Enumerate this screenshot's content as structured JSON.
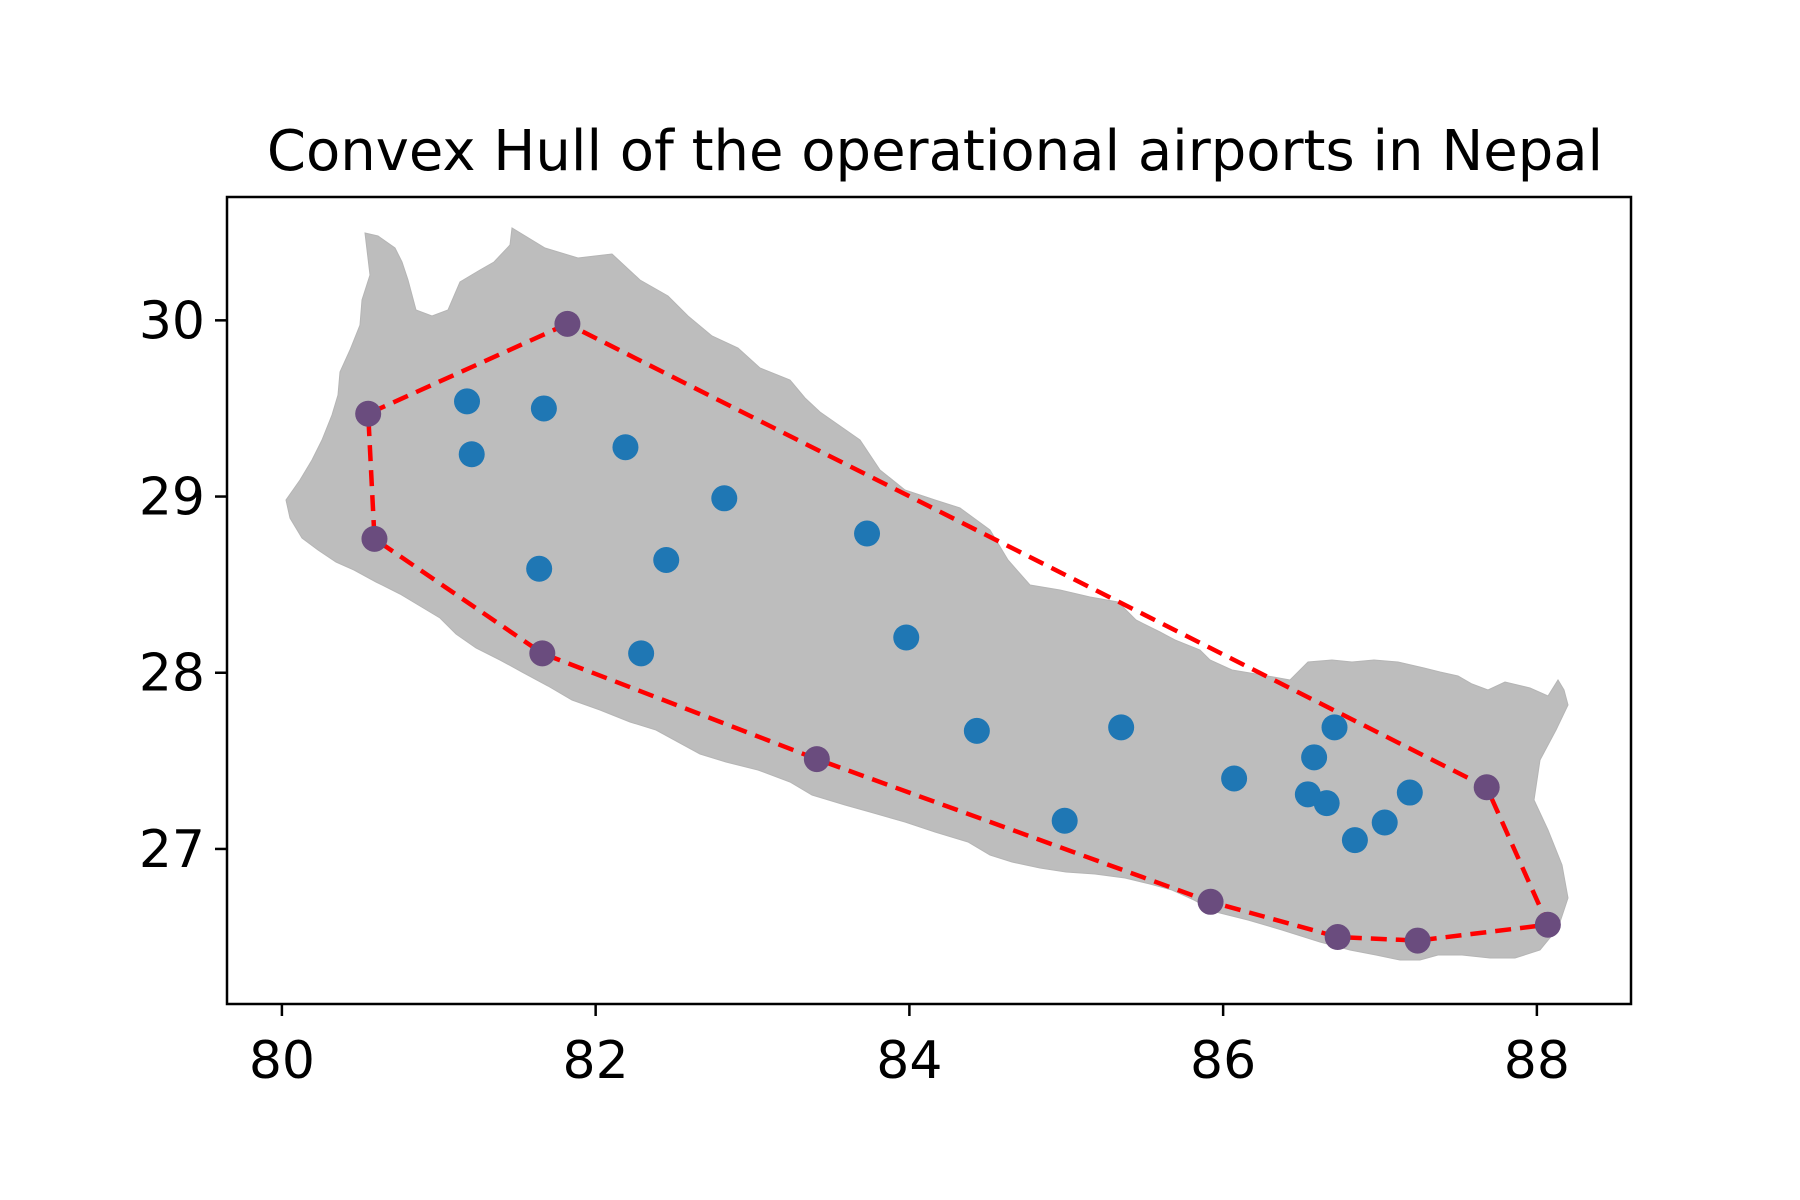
{
  "chart_data": {
    "type": "scatter",
    "title": "Convex Hull of the operational airports in Nepal",
    "xlabel": "",
    "ylabel": "",
    "xlim": [
      79.65,
      88.6
    ],
    "ylim": [
      26.12,
      30.7
    ],
    "xticks": [
      "80",
      "82",
      "84",
      "86",
      "88"
    ],
    "yticks": [
      "27",
      "28",
      "29",
      "30"
    ],
    "grid": false,
    "colors": {
      "map_fill": "#bdbdbd",
      "point": "#1f77b4",
      "hull_vertex": "#6a4c7e",
      "hull_line": "#ff0000"
    },
    "airports": [
      {
        "lon": 81.18,
        "lat": 29.54
      },
      {
        "lon": 81.67,
        "lat": 29.5
      },
      {
        "lon": 81.21,
        "lat": 29.24
      },
      {
        "lon": 82.19,
        "lat": 29.28
      },
      {
        "lon": 82.82,
        "lat": 28.99
      },
      {
        "lon": 81.64,
        "lat": 28.59
      },
      {
        "lon": 82.45,
        "lat": 28.64
      },
      {
        "lon": 83.73,
        "lat": 28.79
      },
      {
        "lon": 82.29,
        "lat": 28.11
      },
      {
        "lon": 83.98,
        "lat": 28.2
      },
      {
        "lon": 84.43,
        "lat": 27.67
      },
      {
        "lon": 85.35,
        "lat": 27.69
      },
      {
        "lon": 84.99,
        "lat": 27.16
      },
      {
        "lon": 86.07,
        "lat": 27.4
      },
      {
        "lon": 86.58,
        "lat": 27.52
      },
      {
        "lon": 86.71,
        "lat": 27.69
      },
      {
        "lon": 86.54,
        "lat": 27.31
      },
      {
        "lon": 86.66,
        "lat": 27.26
      },
      {
        "lon": 87.19,
        "lat": 27.32
      },
      {
        "lon": 87.03,
        "lat": 27.15
      },
      {
        "lon": 86.84,
        "lat": 27.05
      }
    ],
    "hull_vertices": [
      {
        "lon": 81.82,
        "lat": 29.98
      },
      {
        "lon": 80.55,
        "lat": 29.47
      },
      {
        "lon": 80.59,
        "lat": 28.76
      },
      {
        "lon": 81.66,
        "lat": 28.11
      },
      {
        "lon": 83.41,
        "lat": 27.51
      },
      {
        "lon": 85.92,
        "lat": 26.7
      },
      {
        "lon": 86.73,
        "lat": 26.5
      },
      {
        "lon": 87.24,
        "lat": 26.48
      },
      {
        "lon": 88.07,
        "lat": 26.57
      },
      {
        "lon": 87.68,
        "lat": 27.35
      }
    ]
  }
}
